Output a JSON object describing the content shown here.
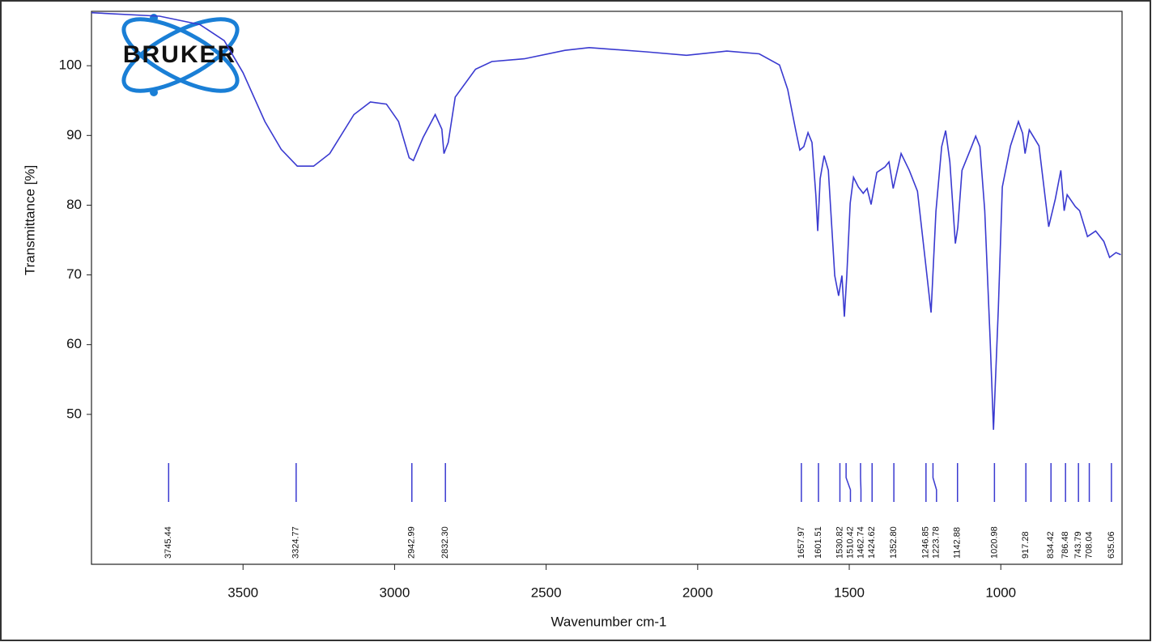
{
  "chart_data": {
    "type": "line",
    "logo_text": "BRUKER",
    "xlabel": "Wavenumber cm-1",
    "ylabel": "Transmittance [%]",
    "xlim": [
      4000,
      600
    ],
    "ylim": [
      28.5,
      107.8
    ],
    "xticks": [
      3500,
      3000,
      2500,
      2000,
      1500,
      1000
    ],
    "yticks": [
      50,
      60,
      70,
      80,
      90,
      100
    ],
    "color": "#3a3ad0",
    "x": [
      4000,
      3775,
      3642,
      3562,
      3500,
      3428,
      3374,
      3321,
      3267,
      3214,
      3134,
      3080,
      3027,
      2987,
      2952,
      2938,
      2906,
      2866,
      2844,
      2837,
      2823,
      2800,
      2733,
      2679,
      2572,
      2438,
      2358,
      2171,
      2037,
      1904,
      1797,
      1730,
      1703,
      1677,
      1663,
      1650,
      1636,
      1623,
      1610,
      1604,
      1596,
      1583,
      1569,
      1548,
      1535,
      1524,
      1516,
      1508,
      1497,
      1486,
      1470,
      1454,
      1441,
      1428,
      1409,
      1382,
      1369,
      1355,
      1329,
      1302,
      1275,
      1248,
      1230,
      1214,
      1195,
      1182,
      1168,
      1150,
      1142,
      1128,
      1101,
      1083,
      1069,
      1053,
      1035,
      1024,
      1008,
      995,
      968,
      942,
      928,
      920,
      906,
      874,
      842,
      820,
      802,
      791,
      781,
      754,
      740,
      714,
      687,
      660,
      641,
      620,
      604
    ],
    "values": [
      107.6,
      107.1,
      105.9,
      103.6,
      99,
      92,
      88,
      85.6,
      85.6,
      87.4,
      93,
      94.8,
      94.5,
      92,
      86.8,
      86.4,
      89.7,
      93,
      90.9,
      87.4,
      89,
      95.5,
      99.5,
      100.6,
      101,
      102.2,
      102.6,
      102,
      101.5,
      102.1,
      101.7,
      100.1,
      96.6,
      90.8,
      87.9,
      88.4,
      90.4,
      89,
      81.4,
      76.3,
      83.8,
      87.1,
      85,
      69.9,
      67,
      69.9,
      64,
      69.9,
      80.3,
      84,
      82.6,
      81.7,
      82.4,
      80.1,
      84.7,
      85.5,
      86.2,
      82.4,
      87.4,
      85,
      82,
      71.6,
      64.6,
      79.1,
      88.4,
      90.7,
      86.2,
      74.5,
      76.8,
      85,
      87.9,
      89.9,
      88.4,
      79.2,
      60.6,
      47.8,
      65.2,
      82.6,
      88.5,
      92,
      90.3,
      87.4,
      90.8,
      88.5,
      76.9,
      80.9,
      85,
      79.2,
      81.5,
      79.8,
      79.2,
      75.5,
      76.3,
      74.8,
      72.5,
      73.2,
      72.9
    ],
    "peaks": [
      3745.44,
      3324.77,
      2942.99,
      {
        "value": 2832.3,
        "label": "2832.30"
      },
      1657.97,
      1601.51,
      1530.82,
      1510.42,
      1462.74,
      1424.62,
      {
        "value": 1352.8,
        "label": "1352.80"
      },
      1246.85,
      1223.78,
      1142.88,
      1020.98,
      917.28,
      834.42,
      786.48,
      743.79,
      708.04,
      635.06
    ]
  }
}
